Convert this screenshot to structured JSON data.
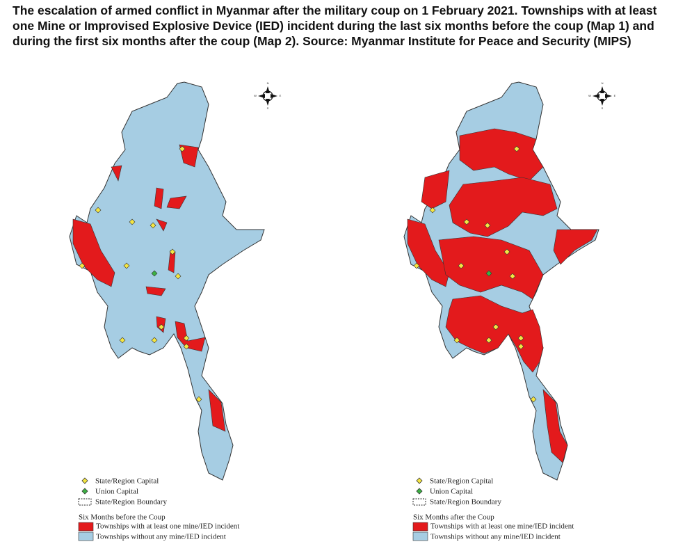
{
  "title": "The escalation of armed conflict in Myanmar after the military coup on 1 February 2021. Townships with at least one Mine or Improvised Explosive Device (IED) incident during the last six months before the coup (Map 1) and during the first six months after the coup (Map 2). Source: Myanmar Institute for Peace and Security (MIPS)",
  "maps": [
    {
      "compass": {
        "n": "N",
        "s": "S",
        "w": "W",
        "e": "E"
      },
      "legend": {
        "capital": "State/Region Capital",
        "union": "Union Capital",
        "boundary": "State/Region Boundary",
        "period": "Six Months before the Coup",
        "with": "Townships with at least one mine/IED incident",
        "without": "Townships without any mine/IED incident"
      }
    },
    {
      "compass": {
        "n": "N",
        "s": "S",
        "w": "W",
        "e": "E"
      },
      "legend": {
        "capital": "State/Region Capital",
        "union": "Union Capital",
        "boundary": "State/Region Boundary",
        "period": "Six Months after the Coup",
        "with": "Townships with at least one mine/IED incident",
        "without": "Townships without any mine/IED incident"
      }
    }
  ]
}
